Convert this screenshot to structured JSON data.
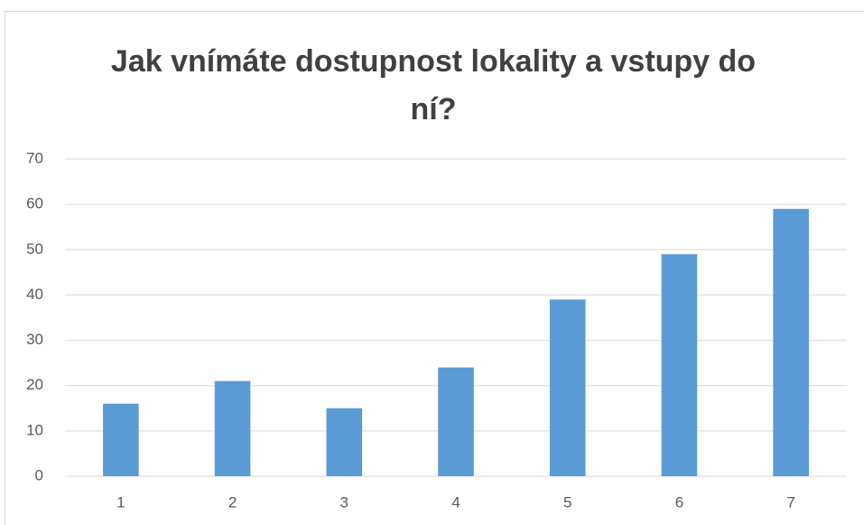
{
  "chart_data": {
    "type": "bar",
    "title": "Jak vnímáte dostupnost lokality a vstupy do ní?",
    "categories": [
      "1",
      "2",
      "3",
      "4",
      "5",
      "6",
      "7"
    ],
    "values": [
      16,
      21,
      15,
      24,
      39,
      49,
      59
    ],
    "color": "#5b9bd5",
    "ylim": [
      0,
      70
    ],
    "yticks": [
      0,
      10,
      20,
      30,
      40,
      50,
      60,
      70
    ],
    "grid": true
  }
}
